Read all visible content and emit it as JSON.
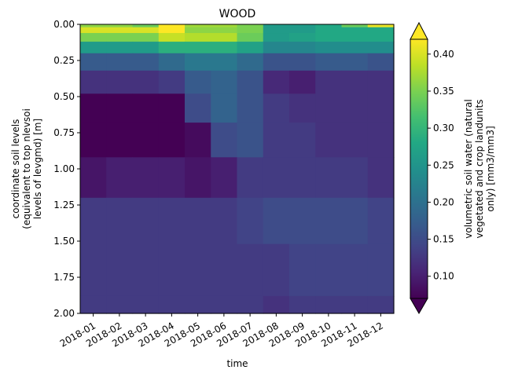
{
  "chart_data": {
    "type": "heatmap",
    "title": "WOOD",
    "xlabel": "time",
    "ylabel": [
      "coordinate soil levels",
      "(equivalent to top nlevsoi",
      "levels of levgmd) [m]"
    ],
    "colorbar_label": [
      "volumetric soil water (natural",
      "vegetated and crop landunits",
      "only) [mm3/mm3]"
    ],
    "colormap": "viridis",
    "x_categories": [
      "2018-01",
      "2018-02",
      "2018-03",
      "2018-04",
      "2018-05",
      "2018-06",
      "2018-07",
      "2018-08",
      "2018-09",
      "2018-10",
      "2018-11",
      "2018-12"
    ],
    "x_tick_labels": [
      "2018-01",
      "2018-02",
      "2018-03",
      "2018-04",
      "2018-05",
      "2018-06",
      "2018-07",
      "2018-08",
      "2018-09",
      "2018-10",
      "2018-11",
      "2018-12"
    ],
    "y_range": [
      0.0,
      2.0
    ],
    "y_inverted": true,
    "y_tick_values": [
      0.0,
      0.25,
      0.5,
      0.75,
      1.0,
      1.25,
      1.5,
      1.75,
      2.0
    ],
    "y_tick_labels": [
      "0.00",
      "0.25",
      "0.50",
      "0.75",
      "1.00",
      "1.25",
      "1.50",
      "1.75",
      "2.00"
    ],
    "y_level_edges": [
      0.0,
      0.02,
      0.06,
      0.12,
      0.2,
      0.32,
      0.48,
      0.68,
      0.92,
      1.2,
      1.52,
      1.88,
      2.0
    ],
    "values": [
      [
        0.36,
        0.36,
        0.34,
        0.42,
        0.37,
        0.37,
        0.35,
        0.26,
        0.26,
        0.28,
        0.34,
        0.41
      ],
      [
        0.4,
        0.4,
        0.4,
        0.42,
        0.36,
        0.36,
        0.35,
        0.26,
        0.26,
        0.28,
        0.28,
        0.28
      ],
      [
        0.35,
        0.35,
        0.35,
        0.39,
        0.38,
        0.38,
        0.34,
        0.26,
        0.27,
        0.28,
        0.28,
        0.28
      ],
      [
        0.26,
        0.26,
        0.26,
        0.29,
        0.29,
        0.29,
        0.27,
        0.23,
        0.23,
        0.24,
        0.24,
        0.24
      ],
      [
        0.17,
        0.17,
        0.17,
        0.19,
        0.21,
        0.21,
        0.19,
        0.16,
        0.16,
        0.17,
        0.17,
        0.16
      ],
      [
        0.12,
        0.12,
        0.12,
        0.13,
        0.17,
        0.18,
        0.16,
        0.11,
        0.1,
        0.12,
        0.12,
        0.12
      ],
      [
        0.07,
        0.07,
        0.07,
        0.07,
        0.15,
        0.18,
        0.16,
        0.13,
        0.12,
        0.12,
        0.12,
        0.12
      ],
      [
        0.07,
        0.07,
        0.07,
        0.07,
        0.08,
        0.15,
        0.16,
        0.13,
        0.13,
        0.12,
        0.12,
        0.12
      ],
      [
        0.09,
        0.1,
        0.1,
        0.1,
        0.09,
        0.1,
        0.13,
        0.13,
        0.13,
        0.13,
        0.13,
        0.12
      ],
      [
        0.13,
        0.13,
        0.13,
        0.13,
        0.13,
        0.13,
        0.14,
        0.15,
        0.15,
        0.15,
        0.15,
        0.14
      ],
      [
        0.13,
        0.13,
        0.13,
        0.13,
        0.13,
        0.13,
        0.13,
        0.13,
        0.14,
        0.14,
        0.14,
        0.14
      ],
      [
        0.13,
        0.13,
        0.13,
        0.13,
        0.13,
        0.13,
        0.13,
        0.12,
        0.13,
        0.13,
        0.13,
        0.13
      ]
    ],
    "colorbar": {
      "range": [
        0.07,
        0.42
      ],
      "tick_values": [
        0.1,
        0.15,
        0.2,
        0.25,
        0.3,
        0.35,
        0.4
      ],
      "tick_labels": [
        "0.10",
        "0.15",
        "0.20",
        "0.25",
        "0.30",
        "0.35",
        "0.40"
      ],
      "extend": "both"
    }
  }
}
